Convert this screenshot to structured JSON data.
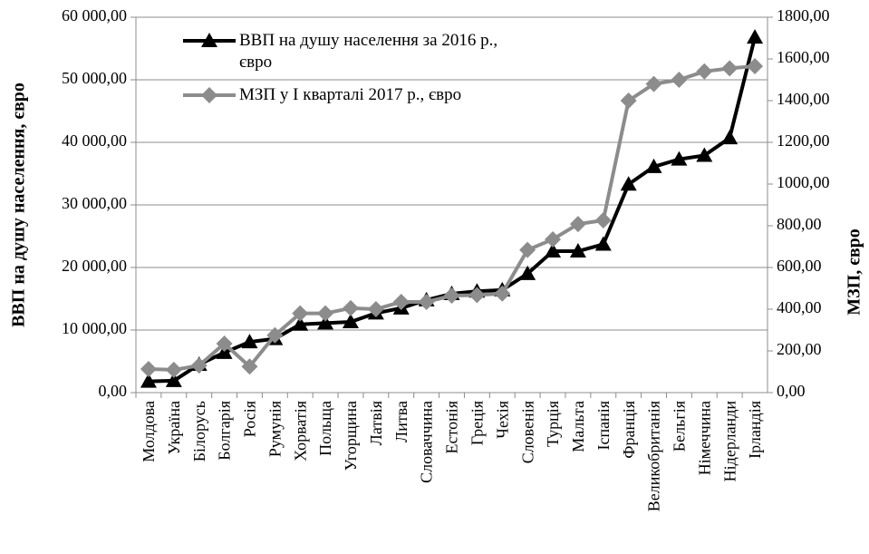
{
  "chart_data": {
    "type": "line",
    "categories": [
      "Молдова",
      "Україна",
      "Білорусь",
      "Болгарія",
      "Росія",
      "Румунія",
      "Хорватія",
      "Польща",
      "Угорщина",
      "Латвія",
      "Литва",
      "Словаччина",
      "Естонія",
      "Греція",
      "Чехія",
      "Словенія",
      "Турція",
      "Мальта",
      "Іспанія",
      "Франція",
      "Великобританія",
      "Бельгія",
      "Німеччина",
      "Нідерланди",
      "Ірландія"
    ],
    "series": [
      {
        "name": "ВВП на душу населення за 2016 р., євро",
        "color": "#000000",
        "marker": "triangle",
        "values": [
          1800,
          1900,
          4500,
          6400,
          8100,
          8600,
          10900,
          11100,
          11300,
          12700,
          13500,
          14800,
          15800,
          16200,
          16400,
          19000,
          22600,
          22600,
          23700,
          33300,
          36100,
          37300,
          37900,
          40700,
          56800
        ]
      },
      {
        "name": "МЗП у І кварталі 2017 р., євро",
        "color": "#8c8c8c",
        "marker": "diamond",
        "axis": "y2",
        "values": [
          113,
          109,
          130,
          235,
          125,
          275,
          380,
          380,
          405,
          400,
          435,
          435,
          465,
          468,
          475,
          684,
          735,
          808,
          826,
          1400,
          1480,
          1500,
          1540,
          1555,
          1565
        ]
      }
    ],
    "ylabel": "ВВП на душу населення, євро",
    "y2label": "МЗП, євро",
    "ylim": [
      0,
      60000
    ],
    "yticks": [
      {
        "value": 0,
        "label": "0,00"
      },
      {
        "value": 10000,
        "label": "10 000,00"
      },
      {
        "value": 20000,
        "label": "20 000,00"
      },
      {
        "value": 30000,
        "label": "30 000,00"
      },
      {
        "value": 40000,
        "label": "40 000,00"
      },
      {
        "value": 50000,
        "label": "50 000,00"
      },
      {
        "value": 60000,
        "label": "60 000,00"
      }
    ],
    "y2lim": [
      0,
      1800
    ],
    "y2ticks": [
      {
        "value": 0,
        "label": "0,00"
      },
      {
        "value": 200,
        "label": "200,00"
      },
      {
        "value": 400,
        "label": "400,00"
      },
      {
        "value": 600,
        "label": "600,00"
      },
      {
        "value": 800,
        "label": "800,00"
      },
      {
        "value": 1000,
        "label": "1000,00"
      },
      {
        "value": 1200,
        "label": "1200,00"
      },
      {
        "value": 1400,
        "label": "1400,00"
      },
      {
        "value": 1600,
        "label": "1600,00"
      },
      {
        "value": 1800,
        "label": "1800,00"
      }
    ],
    "grid": true,
    "legend": "upper left"
  }
}
